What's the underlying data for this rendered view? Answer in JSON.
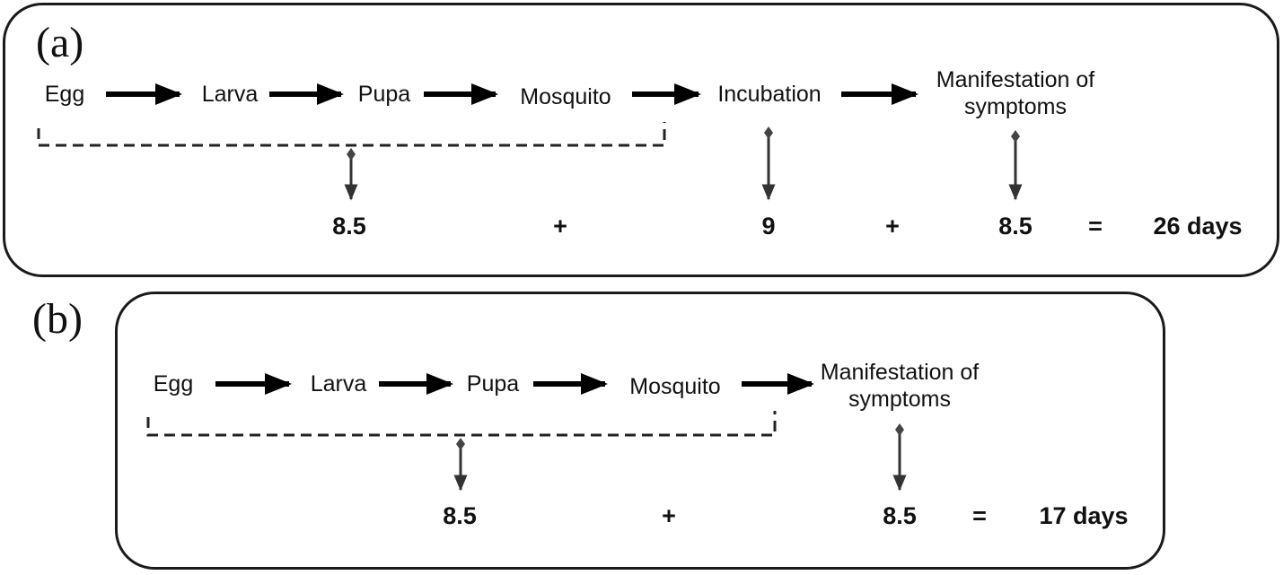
{
  "panel_a": {
    "label": "(a)",
    "stages": [
      "Egg",
      "Larva",
      "Pupa",
      "Mosquito",
      "Incubation",
      "Manifestation of symptoms"
    ],
    "values": [
      "8.5",
      "9",
      "8.5"
    ],
    "plus": "+",
    "equals": "=",
    "total": "26 days"
  },
  "panel_b": {
    "label": "(b)",
    "stages": [
      "Egg",
      "Larva",
      "Pupa",
      "Mosquito",
      "Manifestation of symptoms"
    ],
    "values": [
      "8.5",
      "8.5"
    ],
    "plus": "+",
    "equals": "=",
    "total": "17 days"
  }
}
